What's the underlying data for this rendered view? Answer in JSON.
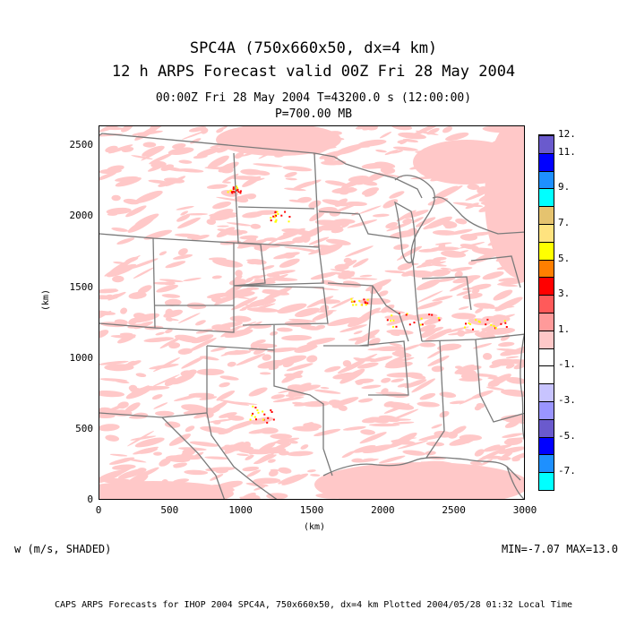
{
  "titles": {
    "line1": "SPC4A (750x660x50, dx=4 km)",
    "line2": "12 h ARPS Forecast valid 00Z Fri 28 May 2004",
    "line3": "00:00Z Fri 28 May 2004     T=43200.0 s (12:00:00)",
    "line4": "P=700.00 MB"
  },
  "axes": {
    "x_ticks": [
      "0",
      "500",
      "1000",
      "1500",
      "2000",
      "2500",
      "3000"
    ],
    "y_ticks": [
      "0",
      "500",
      "1000",
      "1500",
      "2000",
      "2500"
    ],
    "xlabel": "(km)",
    "ylabel": "(km)",
    "xlim": [
      0,
      3000
    ],
    "ylim": [
      0,
      2640
    ]
  },
  "colorbar": {
    "colors": [
      "#00ffff",
      "#1e90ff",
      "#0000ff",
      "#6a5acd",
      "#9a95ff",
      "#c8c4ff",
      "#ffffff",
      "#ffffff",
      "#ffc8c8",
      "#ff9a9a",
      "#ff5a5a",
      "#ff0000",
      "#ff7f00",
      "#ffff00",
      "#ffe37f",
      "#e5c36f",
      "#00ffff",
      "#1e90ff",
      "#0000ff",
      "#6a5acd"
    ],
    "labels": [
      {
        "text": "12.",
        "index": 20
      },
      {
        "text": "11.",
        "index": 19
      },
      {
        "text": "9.",
        "index": 17
      },
      {
        "text": "7.",
        "index": 15
      },
      {
        "text": "5.",
        "index": 13
      },
      {
        "text": "3.",
        "index": 11
      },
      {
        "text": "1.",
        "index": 9
      },
      {
        "text": "-1.",
        "index": 7
      },
      {
        "text": "-3.",
        "index": 5
      },
      {
        "text": "-5.",
        "index": 3
      },
      {
        "text": "-7.",
        "index": 1
      }
    ]
  },
  "field_label": "w (m/s, SHADED)",
  "minmax": "MIN=-7.07 MAX=13.0",
  "footer": "CAPS ARPS Forecasts for IHOP 2004  SPC4A, 750x660x50, dx=4 km  Plotted 2004/05/28 01:32 Local Time",
  "colors": {
    "shade": "#ffc8c8",
    "boundary": "#7a7a7a",
    "hot": "#ff0000",
    "warm": "#ffff00"
  }
}
